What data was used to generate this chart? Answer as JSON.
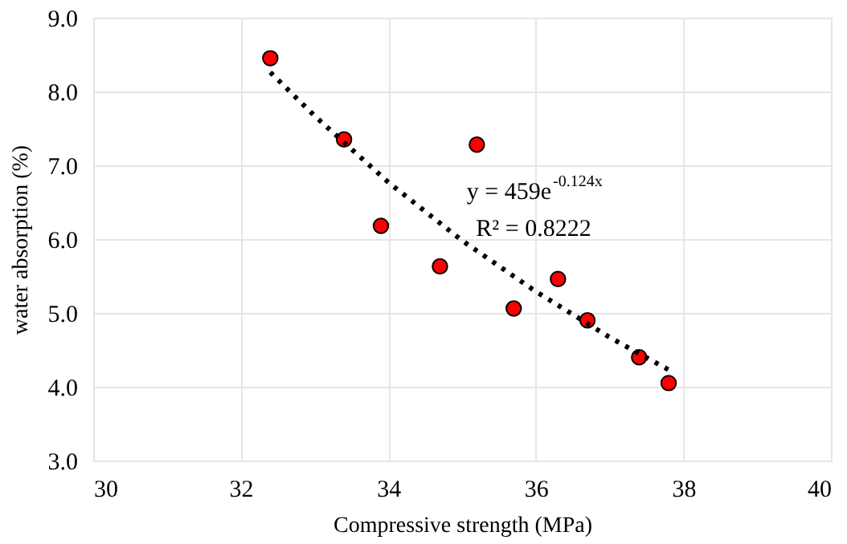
{
  "chart_data": {
    "type": "scatter",
    "xlabel": "Compressive strength (MPa)",
    "ylabel": "water absorption (%)",
    "xlim": [
      30,
      40
    ],
    "xticks": [
      30,
      32,
      34,
      36,
      38,
      40
    ],
    "ylim": [
      3,
      9
    ],
    "yticks": [
      {
        "value": 3,
        "label": "3.0"
      },
      {
        "value": 4,
        "label": "4.0"
      },
      {
        "value": 5,
        "label": "5.0"
      },
      {
        "value": 6,
        "label": "6.0"
      },
      {
        "value": 7,
        "label": "7.0"
      },
      {
        "value": 8,
        "label": "8.0"
      },
      {
        "value": 9,
        "label": "9.0"
      }
    ],
    "grid": true,
    "series": [
      {
        "marker": "circle",
        "color": "#ff0000",
        "x": [
          32.4,
          33.4,
          33.9,
          34.7,
          35.2,
          35.7,
          36.3,
          36.7,
          37.4,
          37.8
        ],
        "values": [
          8.45,
          7.35,
          6.18,
          5.63,
          7.28,
          5.06,
          5.46,
          4.9,
          4.4,
          4.05
        ]
      },
      {
        "type": "line",
        "line_style": "dotted",
        "color": "#000000",
        "x": [
          32.4,
          33,
          34,
          35,
          36,
          37,
          37.8
        ],
        "values": [
          8.26,
          7.67,
          6.77,
          5.98,
          5.29,
          4.67,
          4.23
        ]
      }
    ],
    "annotations": [
      "y = 459e$^{-0.124x}$",
      "R² = 0.8222"
    ]
  }
}
